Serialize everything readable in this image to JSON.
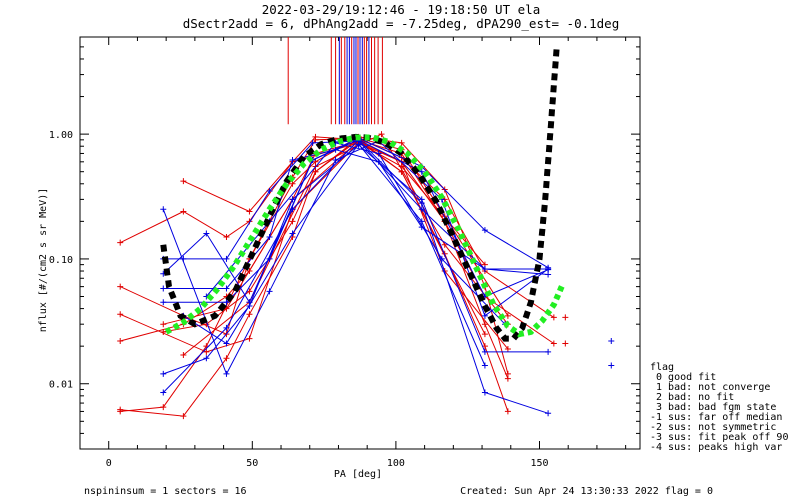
{
  "chart_data": {
    "type": "scatter",
    "title": "2022-03-29/19:12:46 - 19:18:50 UT ela",
    "subtitle": "dSectr2add = 6, dPhAng2add = -7.25deg, dPA290_est=  -0.1deg",
    "xlabel": "PA [deg]",
    "ylabel": "nflux [#/(cm2 s sr MeV)]",
    "xlim": [
      -10,
      185
    ],
    "ylim": [
      0.003,
      6.0
    ],
    "y_scale": "log",
    "x_ticks": [
      0,
      50,
      100,
      150
    ],
    "x_tick_labels": [
      "0",
      "50",
      "100",
      "150"
    ],
    "y_ticks": [
      0.01,
      0.1,
      1.0
    ],
    "y_tick_labels": [
      "0.01",
      "0.10",
      "1.00"
    ],
    "grid": false,
    "legend_position": "bottom-right",
    "legend": {
      "title": "flag",
      "entries": [
        " 0 good fit",
        " 1 bad: not converge",
        " 2 bad: no fit",
        " 3 bad: bad fgm state",
        "-1 sus: far off median",
        "-2 sus: not symmetric",
        "-3 sus: fit peak off 90",
        "-4 sus: peaks high var"
      ]
    },
    "footer_left": "nspininsum =  1  sectors = 16",
    "footer_right": "Created: Sun Apr 24 13:30:33 2022   flag = 0",
    "colors": {
      "red": "#e00000",
      "blue": "#0000e0",
      "black": "#000000",
      "green": "#22ee22"
    },
    "vertical_lines": [
      {
        "pa": 62.5,
        "color": "red",
        "ymin": 1.2
      },
      {
        "pa": 77.5,
        "color": "red",
        "ymin": 1.2
      },
      {
        "pa": 79.0,
        "color": "red",
        "ymin": 1.2
      },
      {
        "pa": 80.3,
        "color": "blue",
        "ymin": 1.2
      },
      {
        "pa": 81.0,
        "color": "red",
        "ymin": 1.2
      },
      {
        "pa": 82.2,
        "color": "red",
        "ymin": 1.2
      },
      {
        "pa": 83.0,
        "color": "blue",
        "ymin": 1.2
      },
      {
        "pa": 83.8,
        "color": "blue",
        "ymin": 1.2
      },
      {
        "pa": 84.6,
        "color": "red",
        "ymin": 1.2
      },
      {
        "pa": 85.4,
        "color": "blue",
        "ymin": 1.2
      },
      {
        "pa": 86.1,
        "color": "blue",
        "ymin": 1.2
      },
      {
        "pa": 86.8,
        "color": "red",
        "ymin": 1.2
      },
      {
        "pa": 87.5,
        "color": "blue",
        "ymin": 1.2
      },
      {
        "pa": 88.3,
        "color": "blue",
        "ymin": 1.2
      },
      {
        "pa": 89.0,
        "color": "red",
        "ymin": 1.2
      },
      {
        "pa": 89.8,
        "color": "red",
        "ymin": 1.2
      },
      {
        "pa": 90.6,
        "color": "blue",
        "ymin": 1.2
      },
      {
        "pa": 91.5,
        "color": "red",
        "ymin": 1.2
      },
      {
        "pa": 92.6,
        "color": "red",
        "ymin": 1.2
      },
      {
        "pa": 93.8,
        "color": "red",
        "ymin": 1.2
      },
      {
        "pa": 95.3,
        "color": "red",
        "ymin": 1.2
      }
    ],
    "series": [
      {
        "color": "red",
        "x": [
          4,
          26,
          41,
          49,
          64,
          72,
          87,
          102,
          117,
          131,
          139
        ],
        "y": [
          0.0062,
          0.0055,
          0.016,
          0.036,
          0.15,
          0.5,
          0.9,
          0.5,
          0.11,
          0.02,
          0.006
        ]
      },
      {
        "color": "red",
        "x": [
          4,
          19,
          34,
          49,
          64,
          72,
          87,
          102,
          117,
          131,
          139
        ],
        "y": [
          0.006,
          0.0065,
          0.02,
          0.1,
          0.4,
          0.6,
          0.95,
          0.85,
          0.36,
          0.06,
          0.012
        ]
      },
      {
        "color": "red",
        "x": [
          4,
          26,
          41,
          49,
          64,
          72,
          87,
          102,
          117,
          131,
          155
        ],
        "y": [
          0.022,
          0.03,
          0.05,
          0.08,
          0.3,
          0.7,
          0.88,
          0.6,
          0.2,
          0.05,
          0.021
        ]
      },
      {
        "color": "red",
        "x": [
          4,
          26,
          41,
          49,
          64,
          72,
          87,
          102,
          117,
          131,
          155
        ],
        "y": [
          0.06,
          0.035,
          0.025,
          0.1,
          0.45,
          0.9,
          0.92,
          0.65,
          0.3,
          0.08,
          0.034
        ]
      },
      {
        "color": "red",
        "x": [
          4,
          26,
          41,
          49,
          64,
          72,
          87,
          102,
          117,
          131,
          139
        ],
        "y": [
          0.135,
          0.24,
          0.15,
          0.2,
          0.6,
          0.95,
          0.9,
          0.7,
          0.2,
          0.03,
          0.011
        ]
      },
      {
        "color": "red",
        "x": [
          26,
          49,
          64,
          87,
          102,
          131
        ],
        "y": [
          0.42,
          0.24,
          0.6,
          0.85,
          0.55,
          0.09
        ]
      },
      {
        "color": "red",
        "x": [
          19,
          34,
          49,
          64,
          72,
          87,
          102,
          117,
          139
        ],
        "y": [
          0.026,
          0.03,
          0.055,
          0.2,
          0.5,
          0.93,
          0.75,
          0.22,
          0.035
        ]
      },
      {
        "color": "red",
        "x": [
          4,
          34,
          49,
          64,
          87,
          102,
          117,
          139
        ],
        "y": [
          0.036,
          0.018,
          0.023,
          0.25,
          0.85,
          0.6,
          0.08,
          0.019
        ]
      },
      {
        "color": "red",
        "x": [
          19,
          41,
          64,
          87,
          102,
          131
        ],
        "y": [
          0.03,
          0.04,
          0.3,
          0.88,
          0.5,
          0.025
        ]
      },
      {
        "color": "red",
        "x": [
          26,
          49,
          72,
          95,
          117,
          139
        ],
        "y": [
          0.017,
          0.045,
          0.55,
          1.0,
          0.13,
          0.03
        ]
      },
      {
        "color": "blue",
        "x": [
          19,
          41,
          64,
          87,
          109,
          131,
          153
        ],
        "y": [
          0.0085,
          0.028,
          0.25,
          0.9,
          0.28,
          0.0085,
          0.0058
        ]
      },
      {
        "color": "blue",
        "x": [
          19,
          34,
          49,
          64,
          87,
          109,
          131,
          153
        ],
        "y": [
          0.012,
          0.016,
          0.042,
          0.3,
          0.82,
          0.3,
          0.018,
          0.018
        ]
      },
      {
        "color": "blue",
        "x": [
          19,
          41,
          56,
          79,
          94,
          116,
          131,
          153
        ],
        "y": [
          0.25,
          0.012,
          0.055,
          0.62,
          0.88,
          0.3,
          0.035,
          0.083
        ]
      },
      {
        "color": "blue",
        "x": [
          19,
          26,
          41,
          56,
          71,
          87,
          109,
          131,
          153
        ],
        "y": [
          0.1,
          0.1,
          0.1,
          0.35,
          0.85,
          0.88,
          0.25,
          0.083,
          0.075
        ]
      },
      {
        "color": "blue",
        "x": [
          19,
          34,
          49,
          71,
          87,
          109,
          131,
          153
        ],
        "y": [
          0.076,
          0.16,
          0.045,
          0.62,
          0.93,
          0.55,
          0.17,
          0.085
        ]
      },
      {
        "color": "blue",
        "x": [
          19,
          41,
          56,
          71,
          87,
          109,
          131,
          153
        ],
        "y": [
          0.045,
          0.045,
          0.1,
          0.62,
          0.9,
          0.5,
          0.05,
          0.082
        ]
      },
      {
        "color": "blue",
        "x": [
          19,
          41,
          56,
          64,
          79,
          94,
          109,
          131,
          153
        ],
        "y": [
          0.058,
          0.058,
          0.15,
          0.62,
          0.75,
          0.6,
          0.18,
          0.083,
          0.083
        ]
      },
      {
        "color": "blue",
        "x": [
          26,
          41,
          64,
          87,
          109,
          131
        ],
        "y": [
          0.035,
          0.021,
          0.16,
          0.83,
          0.2,
          0.014
        ]
      },
      {
        "color": "blue",
        "x": [
          34,
          56,
          79,
          94,
          116,
          138
        ],
        "y": [
          0.05,
          0.2,
          0.85,
          0.7,
          0.1,
          0.03
        ]
      },
      {
        "color": "blue",
        "x": [
          175
        ],
        "y": [
          0.022
        ]
      },
      {
        "color": "blue",
        "x": [
          175
        ],
        "y": [
          0.014
        ]
      },
      {
        "color": "red",
        "x": [
          159
        ],
        "y": [
          0.034
        ]
      },
      {
        "color": "red",
        "x": [
          159
        ],
        "y": [
          0.021
        ]
      }
    ],
    "fit_curves": [
      {
        "color": "black",
        "style": "dashed",
        "points": [
          [
            19,
            0.13
          ],
          [
            21,
            0.06
          ],
          [
            25,
            0.035
          ],
          [
            30,
            0.03
          ],
          [
            37,
            0.035
          ],
          [
            44,
            0.055
          ],
          [
            50,
            0.11
          ],
          [
            56,
            0.22
          ],
          [
            62,
            0.42
          ],
          [
            68,
            0.66
          ],
          [
            74,
            0.83
          ],
          [
            80,
            0.92
          ],
          [
            86,
            0.95
          ],
          [
            90,
            0.94
          ],
          [
            96,
            0.86
          ],
          [
            102,
            0.7
          ],
          [
            108,
            0.48
          ],
          [
            114,
            0.29
          ],
          [
            120,
            0.15
          ],
          [
            126,
            0.075
          ],
          [
            131,
            0.042
          ],
          [
            135,
            0.028
          ],
          [
            138,
            0.023
          ],
          [
            141,
            0.023
          ],
          [
            144,
            0.028
          ],
          [
            147,
            0.045
          ],
          [
            150,
            0.1
          ],
          [
            152,
            0.3
          ],
          [
            154,
            1.2
          ],
          [
            156,
            5.0
          ]
        ]
      },
      {
        "color": "green",
        "style": "dotted",
        "points": [
          [
            20,
            0.026
          ],
          [
            26,
            0.031
          ],
          [
            32,
            0.04
          ],
          [
            38,
            0.058
          ],
          [
            44,
            0.09
          ],
          [
            50,
            0.15
          ],
          [
            56,
            0.25
          ],
          [
            62,
            0.4
          ],
          [
            68,
            0.58
          ],
          [
            74,
            0.75
          ],
          [
            80,
            0.87
          ],
          [
            86,
            0.94
          ],
          [
            92,
            0.94
          ],
          [
            98,
            0.86
          ],
          [
            104,
            0.7
          ],
          [
            110,
            0.5
          ],
          [
            116,
            0.31
          ],
          [
            122,
            0.17
          ],
          [
            128,
            0.085
          ],
          [
            134,
            0.043
          ],
          [
            139,
            0.029
          ],
          [
            143,
            0.025
          ],
          [
            147,
            0.026
          ],
          [
            151,
            0.032
          ],
          [
            155,
            0.043
          ],
          [
            158,
            0.062
          ]
        ]
      }
    ]
  }
}
